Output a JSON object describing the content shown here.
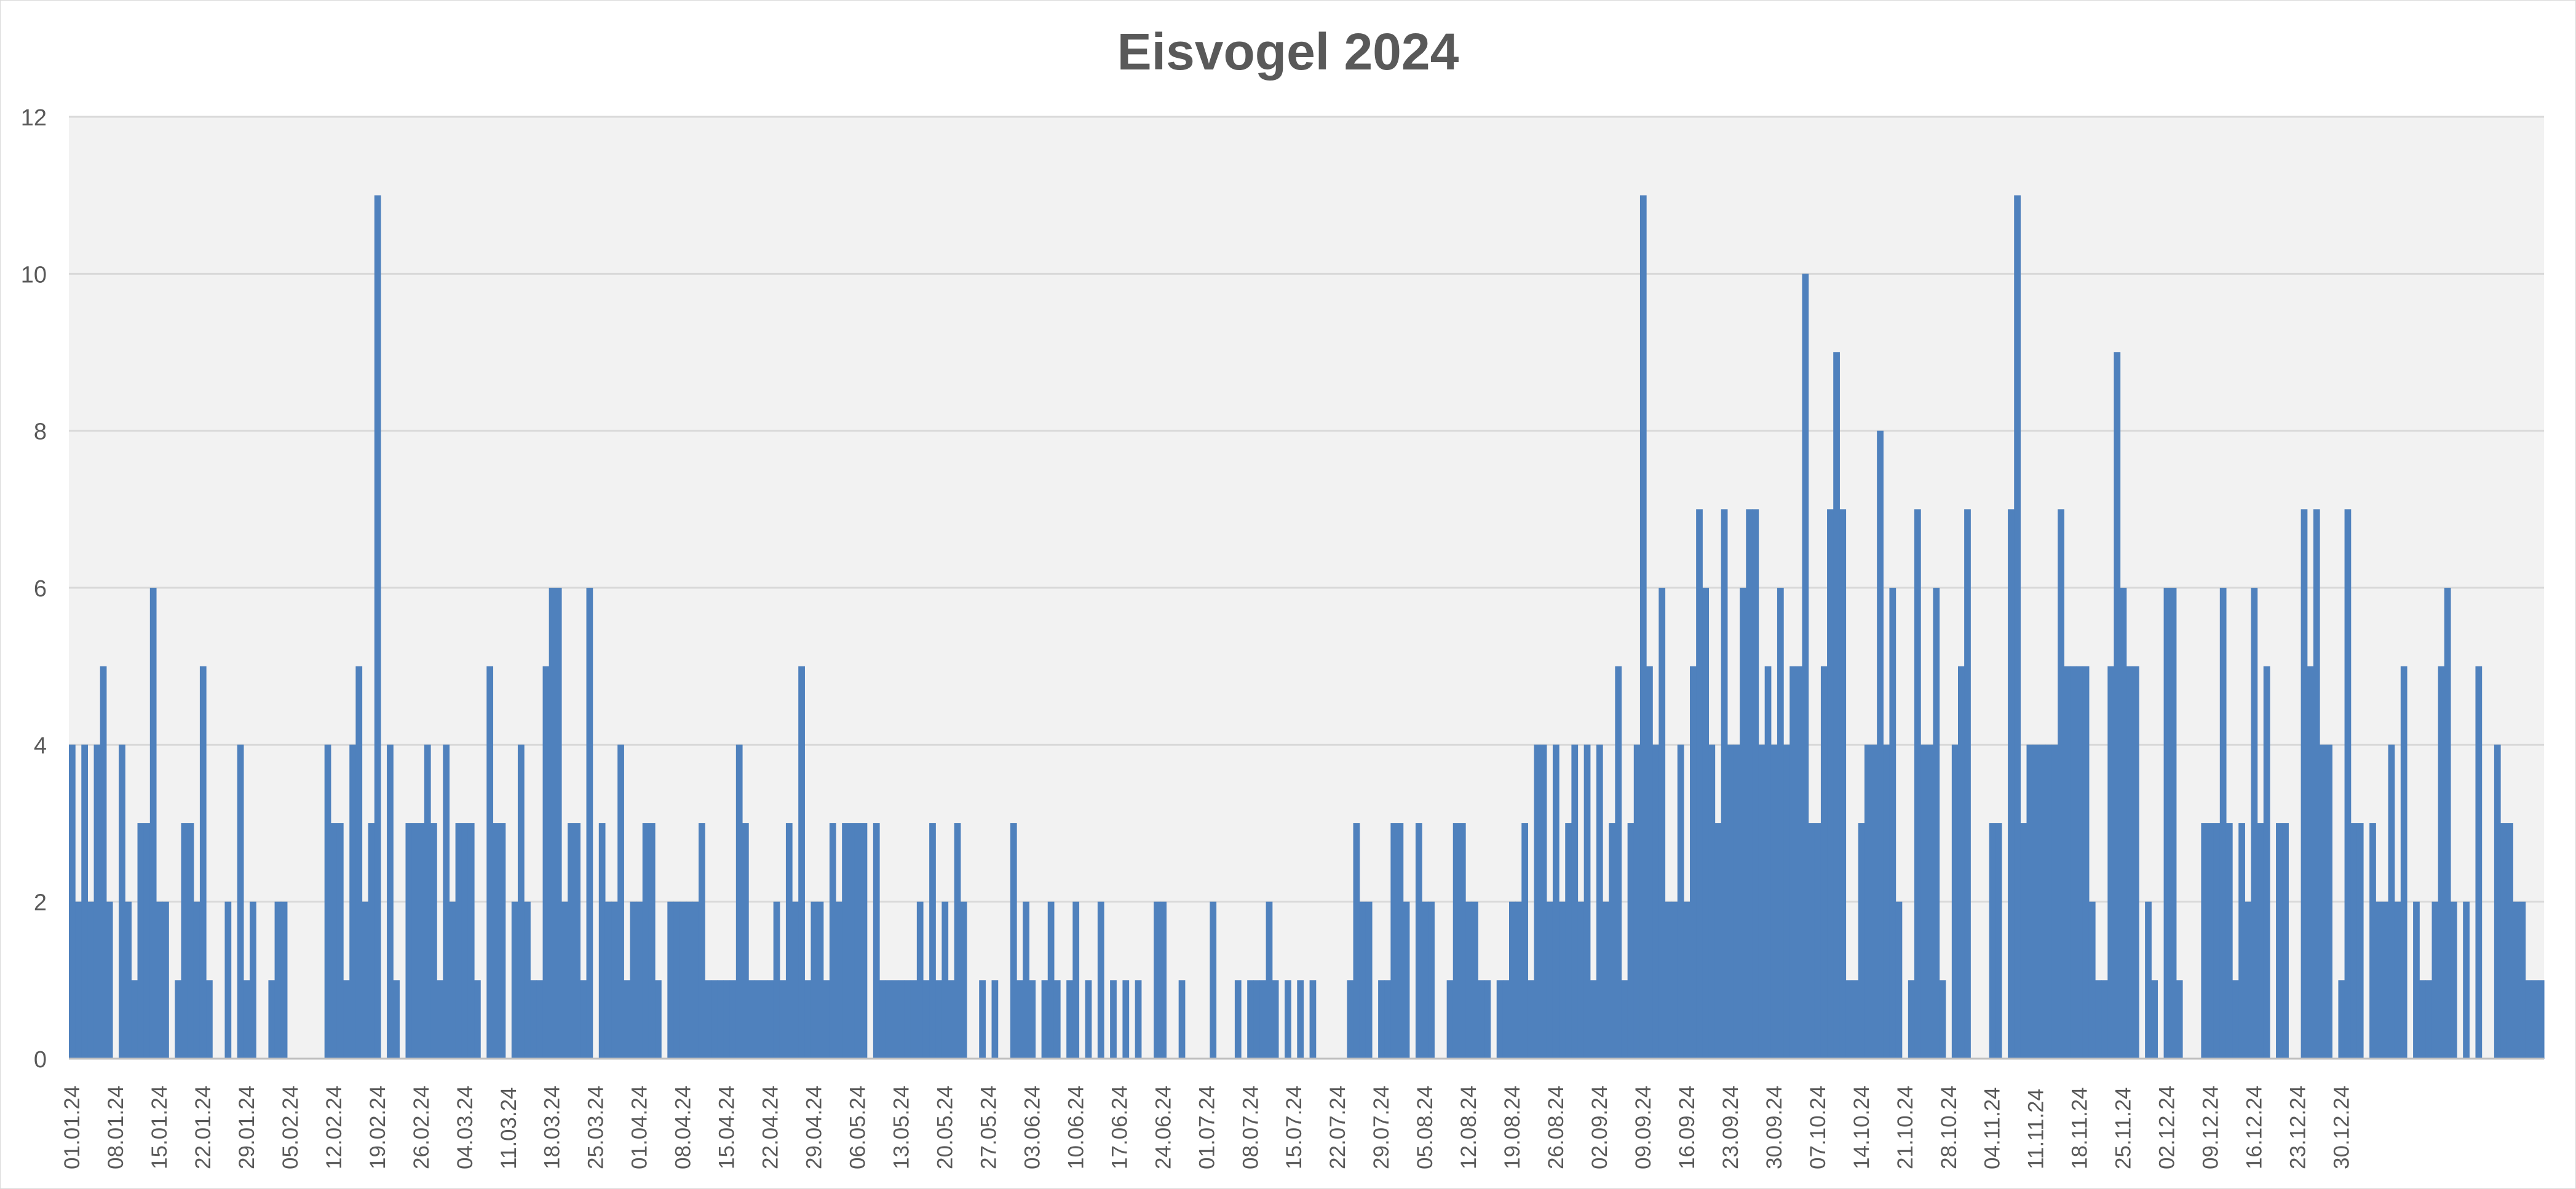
{
  "chart_data": {
    "type": "bar",
    "title": "Eisvogel 2024",
    "xlabel": "",
    "ylabel": "",
    "ylim": [
      0,
      12
    ],
    "yticks": [
      0,
      2,
      4,
      6,
      8,
      10,
      12
    ],
    "grid": true,
    "legend": "none",
    "bar_color": "#4f81bd",
    "plot_background": "#f2f2f2",
    "x_tick_labels": [
      "01.01.24",
      "08.01.24",
      "15.01.24",
      "22.01.24",
      "29.01.24",
      "05.02.24",
      "12.02.24",
      "19.02.24",
      "26.02.24",
      "04.03.24",
      "11.03.24",
      "18.03.24",
      "25.03.24",
      "01.04.24",
      "08.04.24",
      "15.04.24",
      "22.04.24",
      "29.04.24",
      "06.05.24",
      "13.05.24",
      "20.05.24",
      "27.05.24",
      "03.06.24",
      "10.06.24",
      "17.06.24",
      "24.06.24",
      "01.07.24",
      "08.07.24",
      "15.07.24",
      "22.07.24",
      "29.07.24",
      "05.08.24",
      "12.08.24",
      "19.08.24",
      "26.08.24",
      "02.09.24",
      "09.09.24",
      "16.09.24",
      "23.09.24",
      "30.09.24",
      "07.10.24",
      "14.10.24",
      "21.10.24",
      "28.10.24",
      "04.11.24",
      "11.11.24",
      "18.11.24",
      "25.11.24",
      "02.12.24",
      "09.12.24",
      "16.12.24",
      "23.12.24",
      "30.12.24"
    ],
    "series": [
      {
        "values": [
          4,
          2,
          4,
          2,
          4,
          5,
          2,
          0,
          4,
          2,
          1,
          3,
          3,
          6,
          2,
          2,
          0,
          1,
          3,
          3,
          2,
          5,
          1,
          0,
          0,
          2,
          0,
          4,
          1,
          2,
          0,
          0,
          1,
          2,
          2,
          0,
          0,
          0,
          0,
          0,
          0,
          4,
          3,
          3,
          1,
          4,
          5,
          2,
          3,
          11,
          0,
          4,
          1,
          0,
          3,
          3,
          3,
          4,
          3,
          1,
          4,
          2,
          3,
          3,
          3,
          1,
          0,
          5,
          3,
          3,
          0,
          2,
          4,
          2,
          1,
          1,
          5,
          6,
          6,
          2,
          3,
          3,
          1,
          6,
          0,
          3,
          2,
          2,
          4,
          1,
          2,
          2,
          3,
          3,
          1,
          0,
          2,
          2,
          2,
          2,
          2,
          3,
          1,
          1,
          1,
          1,
          1,
          4,
          3,
          1,
          1,
          1,
          1,
          2,
          1,
          3,
          2,
          5,
          1,
          2,
          2,
          1,
          3,
          2,
          3,
          3,
          3,
          3,
          0,
          3,
          1,
          1,
          1,
          1,
          1,
          1,
          2,
          1,
          3,
          1,
          2,
          1,
          3,
          2,
          0,
          0,
          1,
          0,
          1,
          0,
          0,
          3,
          1,
          2,
          1,
          0,
          1,
          2,
          1,
          0,
          1,
          2,
          0,
          1,
          0,
          2,
          0,
          1,
          0,
          1,
          0,
          1,
          0,
          0,
          2,
          2,
          0,
          0,
          1,
          0,
          0,
          0,
          0,
          2,
          0,
          0,
          0,
          1,
          0,
          1,
          1,
          1,
          2,
          1,
          0,
          1,
          0,
          1,
          0,
          1,
          0,
          0,
          0,
          0,
          0,
          1,
          3,
          2,
          2,
          0,
          1,
          1,
          3,
          3,
          2,
          0,
          3,
          2,
          2,
          0,
          0,
          1,
          3,
          3,
          2,
          2,
          1,
          1,
          0,
          1,
          1,
          2,
          2,
          3,
          1,
          4,
          4,
          2,
          4,
          2,
          3,
          4,
          2,
          4,
          1,
          4,
          2,
          3,
          5,
          1,
          3,
          4,
          11,
          5,
          4,
          6,
          2,
          2,
          4,
          2,
          5,
          7,
          6,
          4,
          3,
          7,
          4,
          4,
          6,
          7,
          7,
          4,
          5,
          4,
          6,
          4,
          5,
          5,
          10,
          3,
          3,
          5,
          7,
          9,
          7,
          1,
          1,
          3,
          4,
          4,
          8,
          4,
          6,
          2,
          0,
          1,
          7,
          4,
          4,
          6,
          1,
          0,
          4,
          5,
          7,
          0,
          0,
          0,
          3,
          3,
          0,
          7,
          11,
          3,
          4,
          4,
          4,
          4,
          4,
          7,
          5,
          5,
          5,
          5,
          2,
          1,
          1,
          5,
          9,
          6,
          5,
          5,
          0,
          2,
          1,
          0,
          6,
          6,
          1,
          0,
          0,
          0,
          3,
          3,
          3,
          6,
          3,
          1,
          3,
          2,
          6,
          3,
          5,
          0,
          3,
          3,
          0,
          0,
          7,
          5,
          7,
          4,
          4,
          0,
          1,
          7,
          3,
          3,
          0,
          3,
          2,
          2,
          4,
          2,
          5,
          0,
          2,
          1,
          1,
          2,
          5,
          6,
          2,
          0,
          2,
          0,
          5,
          0,
          0,
          4,
          3,
          3,
          2,
          2,
          1,
          1,
          1
        ]
      }
    ]
  }
}
